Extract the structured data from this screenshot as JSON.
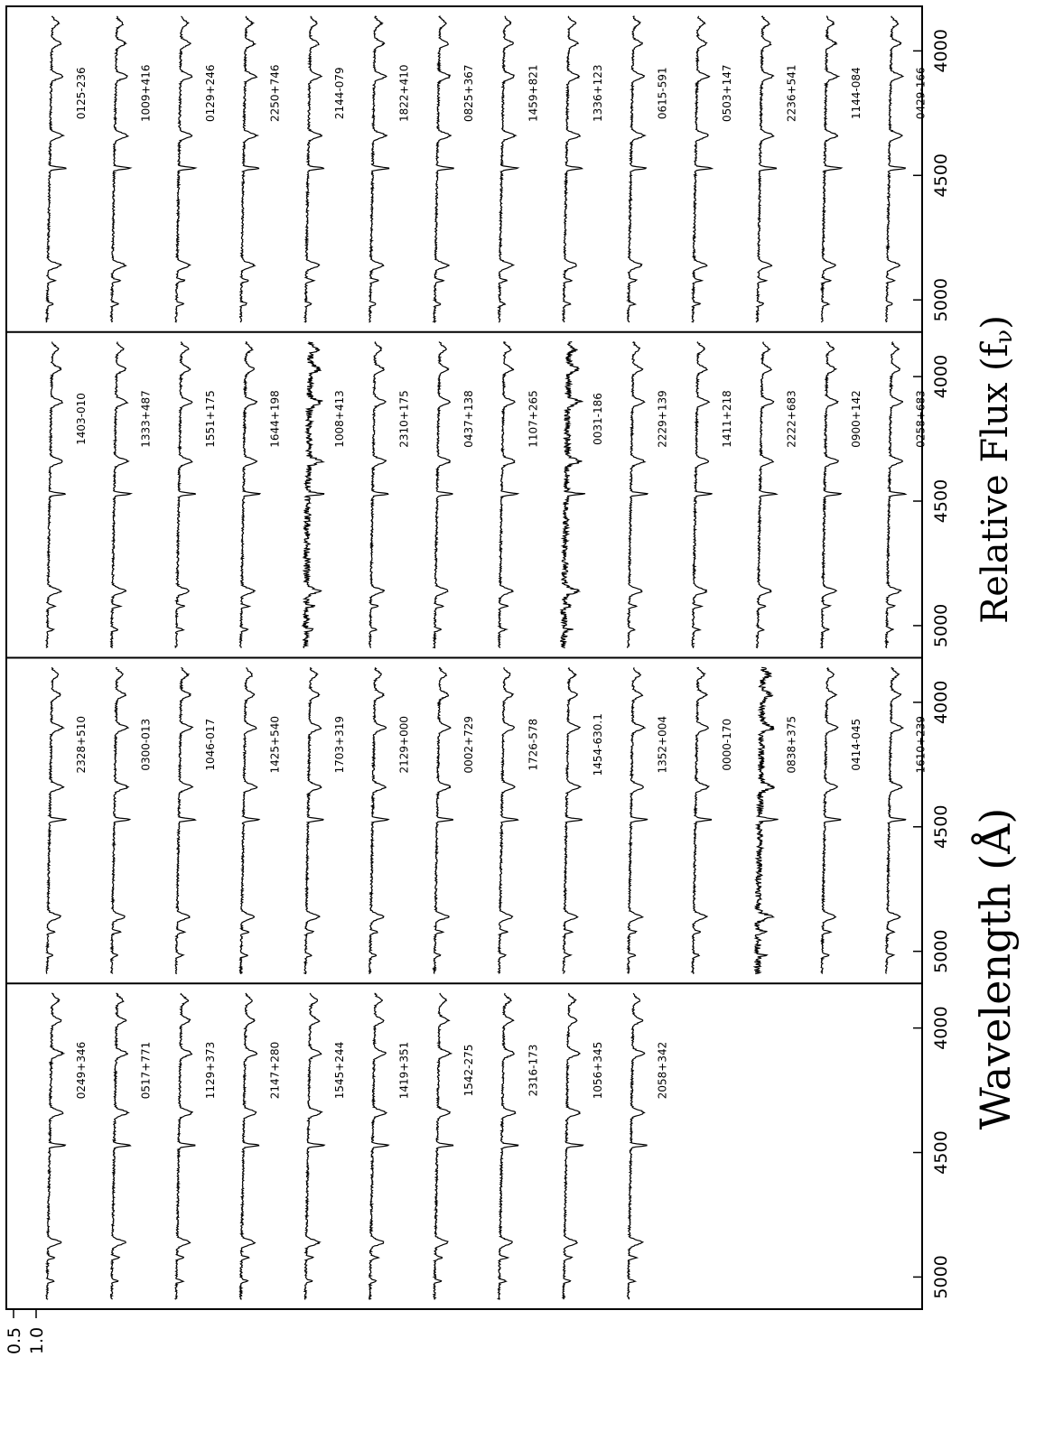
{
  "chart_data": {
    "type": "line",
    "description_orientation": "rotated",
    "xlabel": "Wavelength (Å)",
    "ylabel": "Relative Flux (f",
    "ylabel_subscript": "ν",
    "ylabel_close": ")",
    "x_ticks": [
      "4000",
      "4500",
      "5000"
    ],
    "xlim": [
      3850,
      5100
    ],
    "y_ticks": [
      "1.0",
      "0.5"
    ],
    "grid": false,
    "panels": [
      {
        "stars": [
          "0125-236",
          "1009+416",
          "0129+246",
          "2250+746",
          "2144-079",
          "1822+410",
          "0825+367",
          "1459+821",
          "1336+123",
          "0615-591",
          "0503+147",
          "2236+541",
          "1144-084",
          "0429-166"
        ]
      },
      {
        "stars": [
          "1403-010",
          "1333+487",
          "1551+175",
          "1644+198",
          "1008+413",
          "2310+175",
          "0437+138",
          "1107+265",
          "0031-186",
          "2229+139",
          "1411+218",
          "2222+683",
          "0900+142",
          "0258+683"
        ]
      },
      {
        "stars": [
          "2328+510",
          "0300-013",
          "1046-017",
          "1425+540",
          "1703+319",
          "2129+000",
          "0002+729",
          "1726-578",
          "1454-630.1",
          "1352+004",
          "0000-170",
          "0838+375",
          "0414-045",
          "1610+239"
        ]
      },
      {
        "stars": [
          "0249+346",
          "0517+771",
          "1129+373",
          "2147+280",
          "1545+244",
          "1419+351",
          "1542-275",
          "2316-173",
          "1056+345",
          "2058+342"
        ]
      }
    ]
  }
}
